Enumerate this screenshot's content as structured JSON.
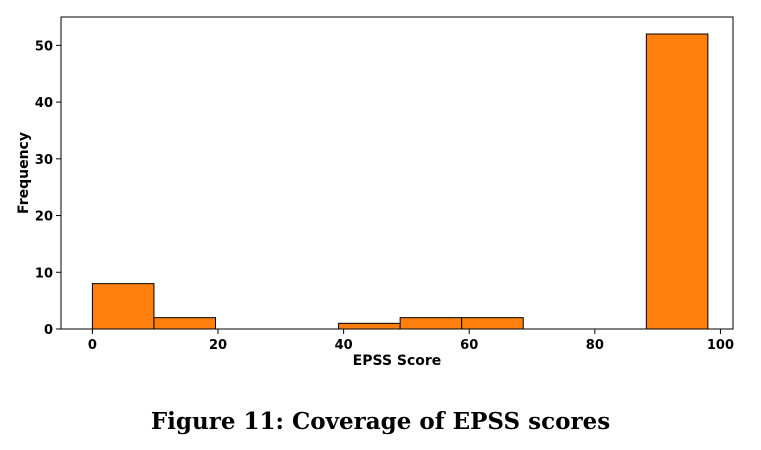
{
  "caption": "Figure 11: Coverage of EPSS scores",
  "chart_data": {
    "type": "bar",
    "xlabel": "EPSS Score",
    "ylabel": "Frequency",
    "xlim": [
      -5,
      102
    ],
    "ylim": [
      0,
      55
    ],
    "x_ticks": [
      0,
      20,
      40,
      60,
      80,
      100
    ],
    "y_ticks": [
      0,
      10,
      20,
      30,
      40,
      50
    ],
    "bar_color": "#ff7f0e",
    "edge_color": "#000000",
    "bins": [
      {
        "start": 0,
        "end": 9.8,
        "count": 8
      },
      {
        "start": 9.8,
        "end": 19.6,
        "count": 2
      },
      {
        "start": 19.6,
        "end": 29.4,
        "count": 0
      },
      {
        "start": 29.4,
        "end": 39.2,
        "count": 0
      },
      {
        "start": 39.2,
        "end": 49,
        "count": 1
      },
      {
        "start": 49,
        "end": 58.8,
        "count": 2
      },
      {
        "start": 58.8,
        "end": 68.6,
        "count": 2
      },
      {
        "start": 68.6,
        "end": 78.4,
        "count": 0
      },
      {
        "start": 78.4,
        "end": 88.2,
        "count": 0
      },
      {
        "start": 88.2,
        "end": 98,
        "count": 52
      }
    ]
  }
}
